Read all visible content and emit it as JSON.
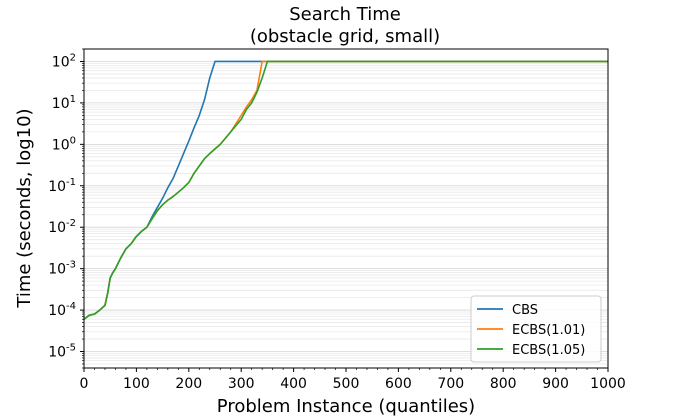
{
  "chart_data": {
    "type": "line",
    "title": "Search Time",
    "subtitle": "(obstacle grid, small)",
    "xlabel": "Problem Instance (quantiles)",
    "ylabel": "Time (seconds, log10)",
    "xlim": [
      0,
      1000
    ],
    "ylim": [
      4e-06,
      200
    ],
    "y_scale": "log",
    "grid": "horizontal minor and major lines",
    "legend_position": "lower-right",
    "x_ticks": [
      0,
      100,
      200,
      300,
      400,
      500,
      600,
      700,
      800,
      900,
      1000
    ],
    "y_ticks": [
      {
        "value": 1e-05,
        "base": "10",
        "exp": "-5"
      },
      {
        "value": 0.0001,
        "base": "10",
        "exp": "-4"
      },
      {
        "value": 0.001,
        "base": "10",
        "exp": "-3"
      },
      {
        "value": 0.01,
        "base": "10",
        "exp": "-2"
      },
      {
        "value": 0.1,
        "base": "10",
        "exp": "-1"
      },
      {
        "value": 1,
        "base": "10",
        "exp": "0"
      },
      {
        "value": 10,
        "base": "10",
        "exp": "1"
      },
      {
        "value": 100,
        "base": "10",
        "exp": "2"
      }
    ],
    "series": [
      {
        "name": "CBS",
        "color": "#1f77b4",
        "points": [
          [
            0,
            6e-05
          ],
          [
            10,
            7.5e-05
          ],
          [
            20,
            8e-05
          ],
          [
            30,
            0.0001
          ],
          [
            40,
            0.00013
          ],
          [
            45,
            0.00025
          ],
          [
            50,
            0.0006
          ],
          [
            55,
            0.0008
          ],
          [
            60,
            0.001
          ],
          [
            70,
            0.0018
          ],
          [
            80,
            0.003
          ],
          [
            90,
            0.004
          ],
          [
            100,
            0.006
          ],
          [
            110,
            0.008
          ],
          [
            120,
            0.01
          ],
          [
            130,
            0.018
          ],
          [
            140,
            0.03
          ],
          [
            150,
            0.05
          ],
          [
            160,
            0.09
          ],
          [
            170,
            0.15
          ],
          [
            180,
            0.3
          ],
          [
            190,
            0.6
          ],
          [
            200,
            1.2
          ],
          [
            210,
            2.5
          ],
          [
            220,
            5
          ],
          [
            230,
            12
          ],
          [
            240,
            40
          ],
          [
            250,
            100
          ],
          [
            1000,
            100
          ]
        ]
      },
      {
        "name": "ECBS(1.01)",
        "color": "#ff7f0e",
        "points": [
          [
            0,
            6e-05
          ],
          [
            10,
            7.5e-05
          ],
          [
            20,
            8e-05
          ],
          [
            30,
            0.0001
          ],
          [
            40,
            0.00013
          ],
          [
            45,
            0.00025
          ],
          [
            50,
            0.0006
          ],
          [
            55,
            0.0008
          ],
          [
            60,
            0.001
          ],
          [
            70,
            0.0018
          ],
          [
            80,
            0.003
          ],
          [
            90,
            0.004
          ],
          [
            100,
            0.006
          ],
          [
            110,
            0.008
          ],
          [
            120,
            0.01
          ],
          [
            130,
            0.016
          ],
          [
            140,
            0.025
          ],
          [
            150,
            0.035
          ],
          [
            160,
            0.045
          ],
          [
            170,
            0.055
          ],
          [
            180,
            0.07
          ],
          [
            190,
            0.09
          ],
          [
            200,
            0.12
          ],
          [
            210,
            0.2
          ],
          [
            220,
            0.3
          ],
          [
            230,
            0.45
          ],
          [
            240,
            0.6
          ],
          [
            260,
            1.0
          ],
          [
            280,
            2.0
          ],
          [
            300,
            5
          ],
          [
            310,
            8
          ],
          [
            320,
            12
          ],
          [
            330,
            20
          ],
          [
            340,
            100
          ],
          [
            1000,
            100
          ]
        ]
      },
      {
        "name": "ECBS(1.05)",
        "color": "#2ca02c",
        "points": [
          [
            0,
            6e-05
          ],
          [
            10,
            7.5e-05
          ],
          [
            20,
            8e-05
          ],
          [
            30,
            0.0001
          ],
          [
            40,
            0.00013
          ],
          [
            45,
            0.00025
          ],
          [
            50,
            0.0006
          ],
          [
            55,
            0.0008
          ],
          [
            60,
            0.001
          ],
          [
            70,
            0.0018
          ],
          [
            80,
            0.003
          ],
          [
            90,
            0.004
          ],
          [
            100,
            0.006
          ],
          [
            110,
            0.008
          ],
          [
            120,
            0.01
          ],
          [
            130,
            0.016
          ],
          [
            140,
            0.025
          ],
          [
            150,
            0.035
          ],
          [
            160,
            0.045
          ],
          [
            170,
            0.055
          ],
          [
            180,
            0.07
          ],
          [
            190,
            0.09
          ],
          [
            200,
            0.12
          ],
          [
            210,
            0.2
          ],
          [
            220,
            0.3
          ],
          [
            230,
            0.45
          ],
          [
            240,
            0.6
          ],
          [
            260,
            1.0
          ],
          [
            280,
            2.0
          ],
          [
            300,
            4
          ],
          [
            310,
            7
          ],
          [
            320,
            10
          ],
          [
            330,
            18
          ],
          [
            340,
            40
          ],
          [
            350,
            100
          ],
          [
            1000,
            100
          ]
        ]
      }
    ]
  }
}
